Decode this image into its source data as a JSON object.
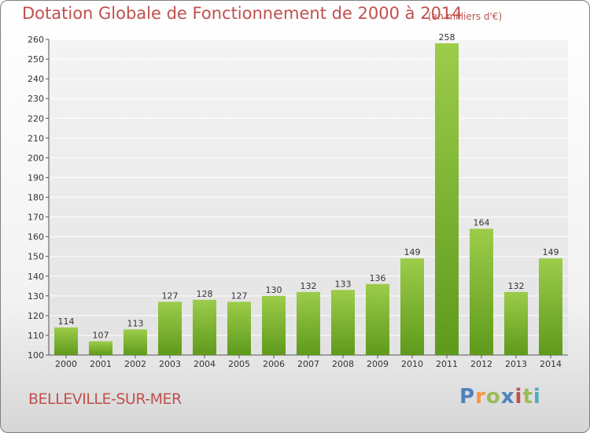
{
  "header": {
    "title": "Dotation Globale de Fonctionnement de 2000 à 2014",
    "subtitle": "(en milliers d'€)"
  },
  "footer": {
    "commune": "BELLEVILLE-SUR-MER",
    "logo_text": "Proxiti",
    "logo_colors": [
      "#4f81bd",
      "#f79646",
      "#9bbb59",
      "#4f81bd",
      "#c0504d",
      "#9bbb59",
      "#4bacc6"
    ]
  },
  "colors": {
    "bar_light": "#9ccc4a",
    "bar_dark": "#5f9a1c",
    "title": "#c0504d"
  },
  "chart_data": {
    "type": "bar",
    "title": "Dotation Globale de Fonctionnement de 2000 à 2014",
    "subtitle": "(en milliers d'€)",
    "xlabel": "",
    "ylabel": "",
    "categories": [
      "2000",
      "2001",
      "2002",
      "2003",
      "2004",
      "2005",
      "2006",
      "2007",
      "2008",
      "2009",
      "2010",
      "2011",
      "2012",
      "2013",
      "2014"
    ],
    "values": [
      114,
      107,
      113,
      127,
      128,
      127,
      130,
      132,
      133,
      136,
      149,
      258,
      164,
      132,
      149
    ],
    "ylim": [
      100,
      260
    ],
    "yticks": [
      100,
      110,
      120,
      130,
      140,
      150,
      160,
      170,
      180,
      190,
      200,
      210,
      220,
      230,
      240,
      250,
      260
    ],
    "grid": true,
    "legend": "none"
  }
}
